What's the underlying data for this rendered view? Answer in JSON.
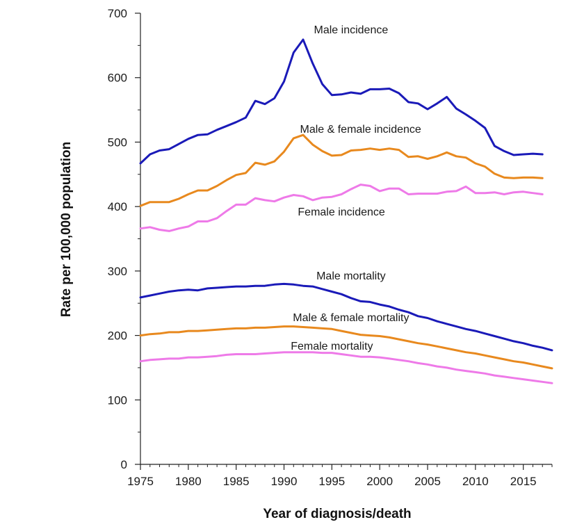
{
  "chart_data": {
    "type": "line",
    "title": "",
    "xlabel": "Year of diagnosis/death",
    "ylabel": "Rate per 100,000 population",
    "xlim": [
      1975,
      2018
    ],
    "ylim": [
      0,
      700
    ],
    "grid": false,
    "x_ticks": [
      1975,
      1980,
      1985,
      1990,
      1995,
      2000,
      2005,
      2010,
      2015
    ],
    "x_tick_labels": [
      "1975",
      "1980",
      "1985",
      "1990",
      "1995",
      "2000",
      "2005",
      "2010",
      "2015"
    ],
    "y_ticks": [
      0,
      100,
      200,
      300,
      400,
      500,
      600,
      700
    ],
    "y_tick_labels": [
      "0",
      "100",
      "200",
      "300",
      "400",
      "500",
      "600",
      "700"
    ],
    "series": [
      {
        "name": "Male incidence",
        "color": "#1a1ab8",
        "label_at": [
          1997,
          42
        ],
        "x": [
          1975,
          1976,
          1977,
          1978,
          1979,
          1980,
          1981,
          1982,
          1983,
          1984,
          1985,
          1986,
          1987,
          1988,
          1989,
          1990,
          1991,
          1992,
          1993,
          1994,
          1995,
          1996,
          1997,
          1998,
          1999,
          2000,
          2001,
          2002,
          2003,
          2004,
          2005,
          2006,
          2007,
          2008,
          2009,
          2010,
          2011,
          2012,
          2013,
          2014,
          2015,
          2016,
          2017
        ],
        "values": [
          467,
          481,
          487,
          489,
          497,
          505,
          511,
          512,
          519,
          525,
          531,
          538,
          564,
          559,
          568,
          594,
          639,
          659,
          622,
          590,
          573,
          574,
          577,
          575,
          582,
          582,
          583,
          576,
          562,
          560,
          551,
          560,
          570,
          552,
          543,
          533,
          522,
          494,
          486,
          480,
          481,
          482,
          481
        ]
      },
      {
        "name": "Male & female incidence",
        "color": "#e8891e",
        "label_at": [
          1998,
          185
        ],
        "x": [
          1975,
          1976,
          1977,
          1978,
          1979,
          1980,
          1981,
          1982,
          1983,
          1984,
          1985,
          1986,
          1987,
          1988,
          1989,
          1990,
          1991,
          1992,
          1993,
          1994,
          1995,
          1996,
          1997,
          1998,
          1999,
          2000,
          2001,
          2002,
          2003,
          2004,
          2005,
          2006,
          2007,
          2008,
          2009,
          2010,
          2011,
          2012,
          2013,
          2014,
          2015,
          2016,
          2017
        ],
        "values": [
          401,
          407,
          407,
          407,
          412,
          419,
          425,
          425,
          432,
          441,
          449,
          452,
          468,
          465,
          470,
          485,
          506,
          511,
          496,
          486,
          479,
          480,
          487,
          488,
          490,
          488,
          490,
          488,
          477,
          478,
          474,
          478,
          484,
          478,
          476,
          467,
          462,
          451,
          445,
          444,
          445,
          445,
          444
        ]
      },
      {
        "name": "Female incidence",
        "color": "#ee7ae8",
        "label_at": [
          1996,
          304
        ],
        "x": [
          1975,
          1976,
          1977,
          1978,
          1979,
          1980,
          1981,
          1982,
          1983,
          1984,
          1985,
          1986,
          1987,
          1988,
          1989,
          1990,
          1991,
          1992,
          1993,
          1994,
          1995,
          1996,
          1997,
          1998,
          1999,
          2000,
          2001,
          2002,
          2003,
          2004,
          2005,
          2006,
          2007,
          2008,
          2009,
          2010,
          2011,
          2012,
          2013,
          2014,
          2015,
          2016,
          2017
        ],
        "values": [
          366,
          368,
          364,
          362,
          366,
          369,
          377,
          377,
          382,
          393,
          403,
          403,
          413,
          410,
          408,
          414,
          418,
          416,
          410,
          414,
          415,
          419,
          427,
          434,
          432,
          424,
          428,
          428,
          419,
          420,
          420,
          420,
          423,
          424,
          431,
          421,
          421,
          422,
          419,
          422,
          423,
          421,
          419
        ]
      },
      {
        "name": "Male mortality",
        "color": "#1a1ab8",
        "label_at": [
          1997,
          396
        ],
        "x": [
          1975,
          1976,
          1977,
          1978,
          1979,
          1980,
          1981,
          1982,
          1983,
          1984,
          1985,
          1986,
          1987,
          1988,
          1989,
          1990,
          1991,
          1992,
          1993,
          1994,
          1995,
          1996,
          1997,
          1998,
          1999,
          2000,
          2001,
          2002,
          2003,
          2004,
          2005,
          2006,
          2007,
          2008,
          2009,
          2010,
          2011,
          2012,
          2013,
          2014,
          2015,
          2016,
          2017,
          2018
        ],
        "values": [
          259,
          262,
          265,
          268,
          270,
          271,
          270,
          273,
          274,
          275,
          276,
          276,
          277,
          277,
          279,
          280,
          279,
          277,
          276,
          272,
          268,
          264,
          258,
          253,
          252,
          248,
          245,
          240,
          236,
          230,
          227,
          222,
          218,
          214,
          210,
          207,
          203,
          199,
          195,
          191,
          188,
          184,
          181,
          177
        ]
      },
      {
        "name": "Male & female mortality",
        "color": "#e8891e",
        "label_at": [
          1997,
          456
        ],
        "x": [
          1975,
          1976,
          1977,
          1978,
          1979,
          1980,
          1981,
          1982,
          1983,
          1984,
          1985,
          1986,
          1987,
          1988,
          1989,
          1990,
          1991,
          1992,
          1993,
          1994,
          1995,
          1996,
          1997,
          1998,
          1999,
          2000,
          2001,
          2002,
          2003,
          2004,
          2005,
          2006,
          2007,
          2008,
          2009,
          2010,
          2011,
          2012,
          2013,
          2014,
          2015,
          2016,
          2017,
          2018
        ],
        "values": [
          200,
          202,
          203,
          205,
          205,
          207,
          207,
          208,
          209,
          210,
          211,
          211,
          212,
          212,
          213,
          214,
          214,
          213,
          212,
          211,
          210,
          207,
          204,
          201,
          200,
          199,
          197,
          194,
          191,
          188,
          186,
          183,
          180,
          177,
          174,
          172,
          169,
          166,
          163,
          160,
          158,
          155,
          152,
          149
        ]
      },
      {
        "name": "Female mortality",
        "color": "#ee7ae8",
        "label_at": [
          1995,
          497
        ],
        "x": [
          1975,
          1976,
          1977,
          1978,
          1979,
          1980,
          1981,
          1982,
          1983,
          1984,
          1985,
          1986,
          1987,
          1988,
          1989,
          1990,
          1991,
          1992,
          1993,
          1994,
          1995,
          1996,
          1997,
          1998,
          1999,
          2000,
          2001,
          2002,
          2003,
          2004,
          2005,
          2006,
          2007,
          2008,
          2009,
          2010,
          2011,
          2012,
          2013,
          2014,
          2015,
          2016,
          2017,
          2018
        ],
        "values": [
          160,
          162,
          163,
          164,
          164,
          166,
          166,
          167,
          168,
          170,
          171,
          171,
          171,
          172,
          173,
          174,
          174,
          174,
          174,
          173,
          173,
          171,
          169,
          167,
          167,
          166,
          164,
          162,
          160,
          157,
          155,
          152,
          150,
          147,
          145,
          143,
          141,
          138,
          136,
          134,
          132,
          130,
          128,
          126
        ]
      }
    ]
  }
}
